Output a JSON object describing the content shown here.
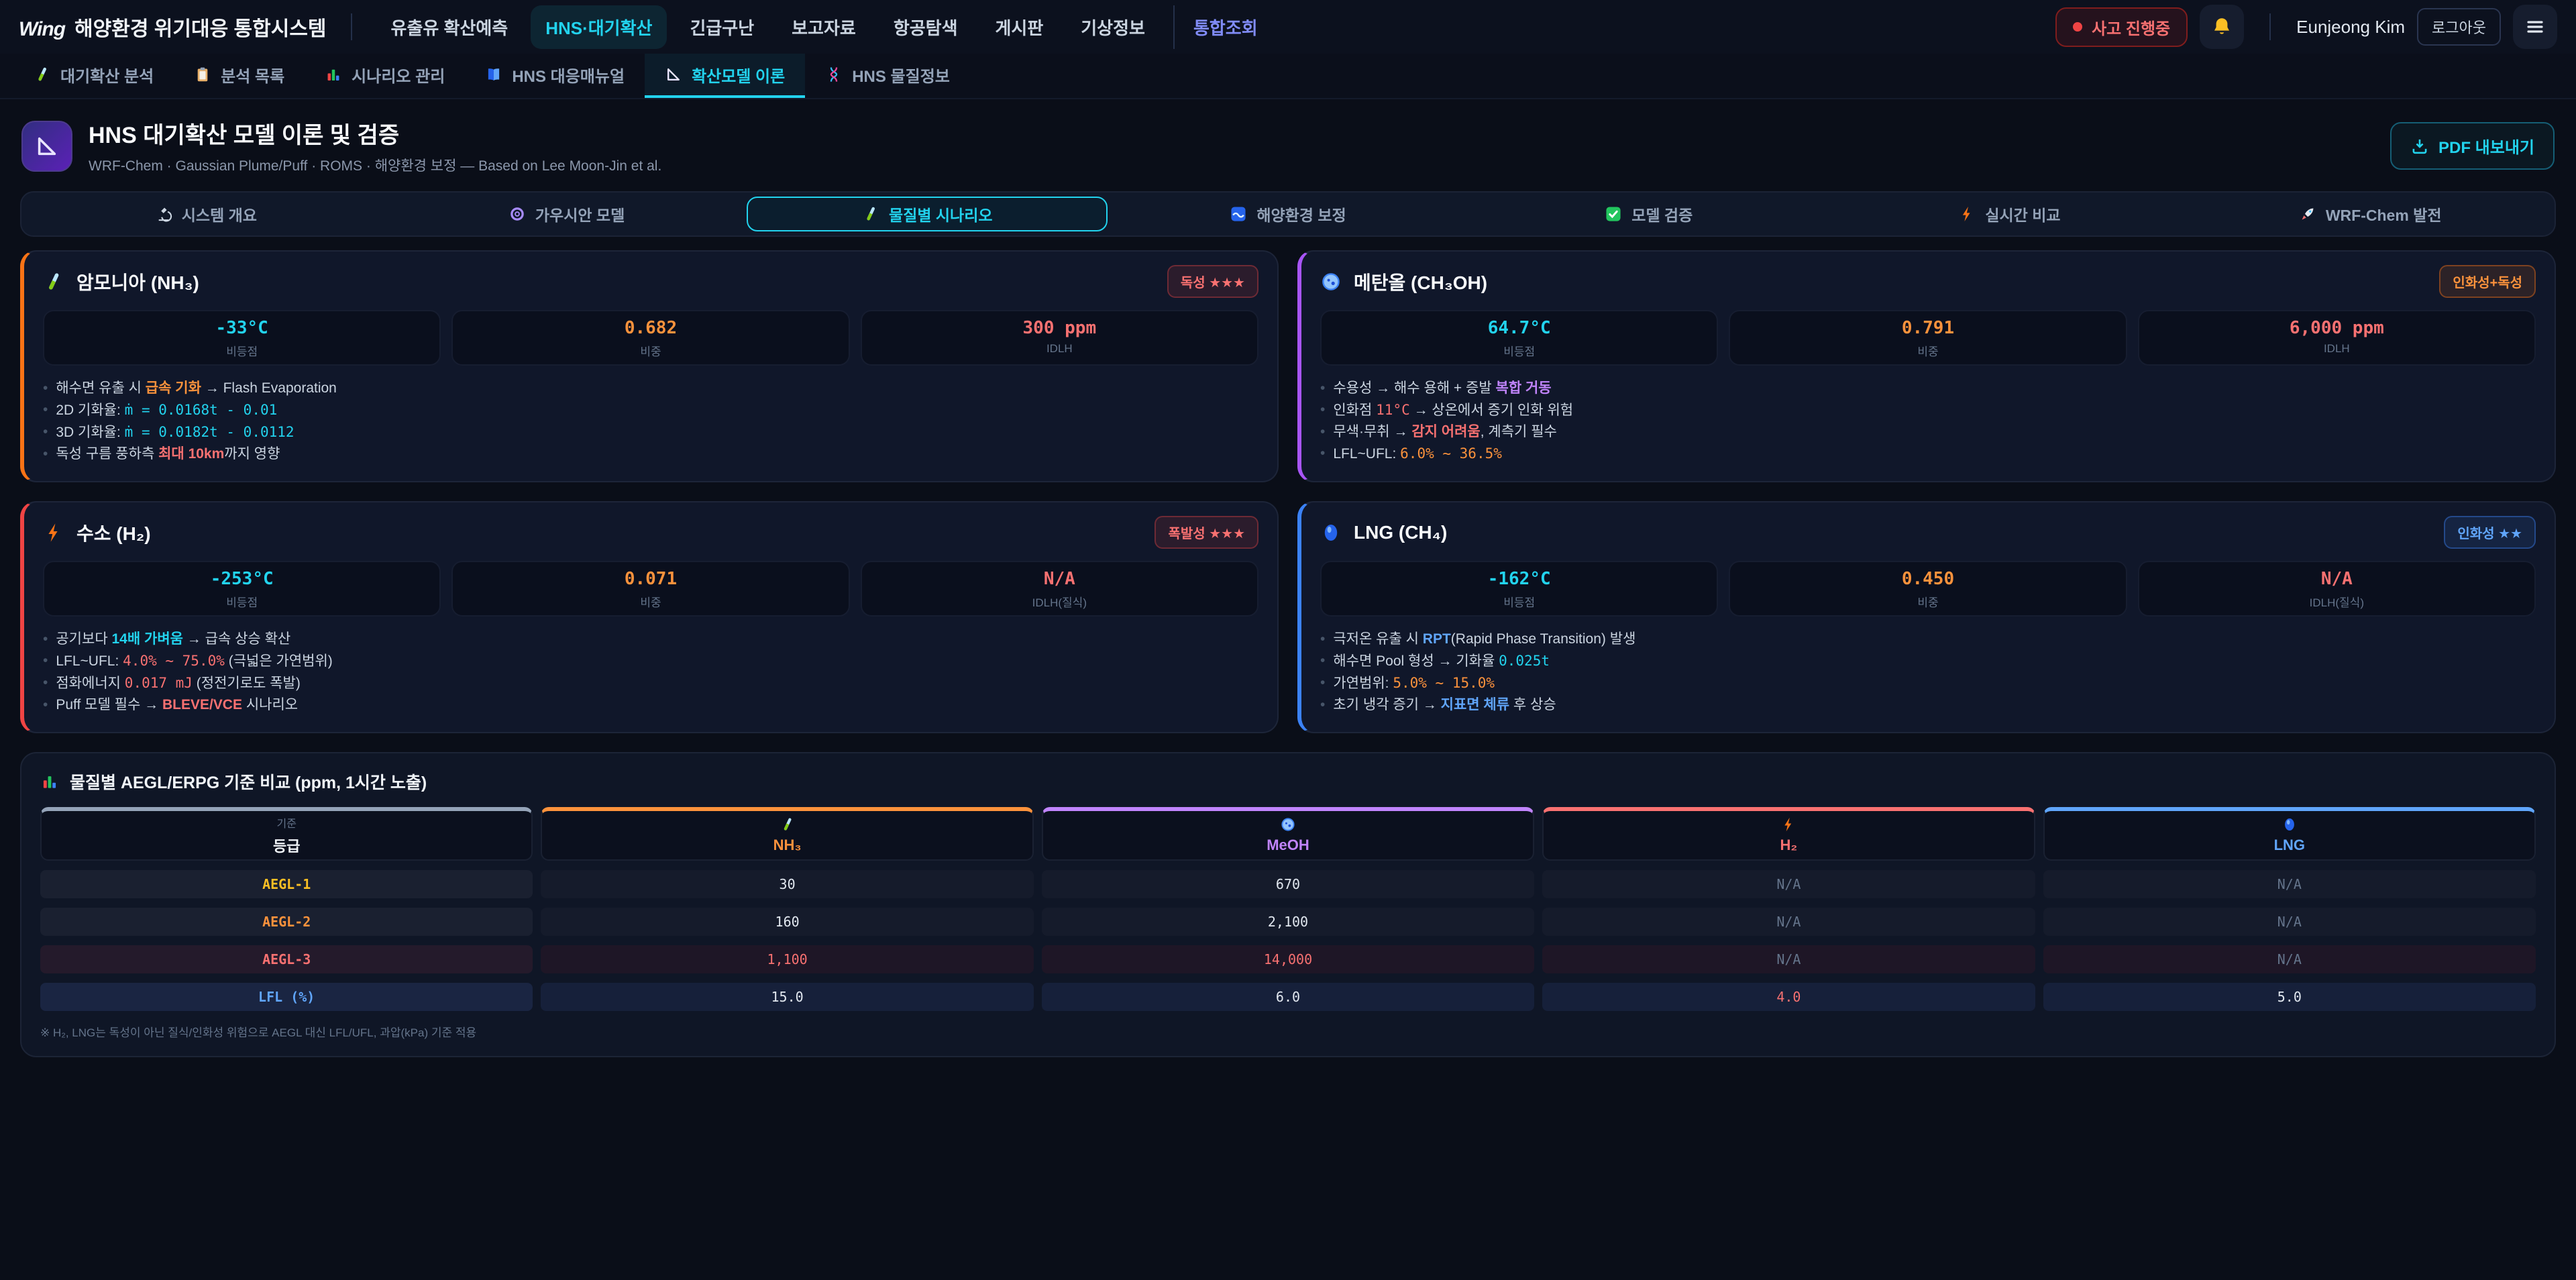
{
  "topbar": {
    "logo_mark": "Wing",
    "logo_text": "해양환경 위기대응 통합시스템",
    "nav": [
      {
        "label": "유출유 확산예측",
        "style": "normal"
      },
      {
        "label": "HNS·대기확산",
        "style": "active"
      },
      {
        "label": "긴급구난",
        "style": "normal"
      },
      {
        "label": "보고자료",
        "style": "normal"
      },
      {
        "label": "항공탐색",
        "style": "normal"
      },
      {
        "label": "게시판",
        "style": "normal"
      },
      {
        "label": "기상정보",
        "style": "normal"
      },
      {
        "label": "통합조회",
        "style": "accent"
      }
    ],
    "incident_badge": "사고 진행중",
    "user_name": "Eunjeong Kim",
    "logout_label": "로그아웃"
  },
  "subtabs": [
    {
      "icon": "test-tube-icon",
      "label": "대기확산 분석",
      "active": false
    },
    {
      "icon": "clipboard-icon",
      "label": "분석 목록",
      "active": false
    },
    {
      "icon": "bar-chart-icon",
      "label": "시나리오 관리",
      "active": false
    },
    {
      "icon": "book-icon",
      "label": "HNS 대응매뉴얼",
      "active": false
    },
    {
      "icon": "ruler-icon",
      "label": "확산모델 이론",
      "active": true
    },
    {
      "icon": "dna-icon",
      "label": "HNS 물질정보",
      "active": false
    }
  ],
  "header": {
    "title": "HNS 대기확산 모델 이론 및 검증",
    "subtitle": "WRF-Chem · Gaussian Plume/Puff · ROMS · 해양환경 보정 — Based on Lee Moon-Jin et al.",
    "pdf_button": "PDF 내보내기"
  },
  "pill_tabs": [
    {
      "icon": "microscope-icon",
      "label": "시스템 개요",
      "active": false
    },
    {
      "icon": "spiral-icon",
      "label": "가우시안 모델",
      "active": false
    },
    {
      "icon": "test-tube-icon",
      "label": "물질별 시나리오",
      "active": true
    },
    {
      "icon": "wave-icon",
      "label": "해양환경 보정",
      "active": false
    },
    {
      "icon": "check-icon",
      "label": "모델 검증",
      "active": false
    },
    {
      "icon": "bolt-icon",
      "label": "실시간 비교",
      "active": false
    },
    {
      "icon": "rocket-icon",
      "label": "WRF-Chem 발전",
      "active": false
    }
  ],
  "chemicals": [
    {
      "id": "nh3",
      "icon": "test-tube-icon",
      "name": "암모니아 (NH₃)",
      "accent": "#f97316",
      "badge": {
        "label": "독성 ★★★",
        "style": "red"
      },
      "stats": [
        {
          "value": "-33°C",
          "label": "비등점",
          "color": "cyan"
        },
        {
          "value": "0.682",
          "label": "비중",
          "color": "orange"
        },
        {
          "value": "300 ppm",
          "label": "IDLH",
          "color": "red"
        }
      ],
      "bullets": [
        [
          {
            "t": "해수면 유출 시 ",
            "s": "plain"
          },
          {
            "t": "급속 기화",
            "s": "orange-bold"
          },
          {
            "t": " → Flash Evaporation",
            "s": "plain"
          }
        ],
        [
          {
            "t": "2D 기화율: ",
            "s": "plain"
          },
          {
            "t": "ṁ = 0.0168t - 0.01",
            "s": "cyan-mono"
          }
        ],
        [
          {
            "t": "3D 기화율: ",
            "s": "plain"
          },
          {
            "t": "ṁ = 0.0182t - 0.0112",
            "s": "cyan-mono"
          }
        ],
        [
          {
            "t": "독성 구름 풍하측 ",
            "s": "plain"
          },
          {
            "t": "최대 10km",
            "s": "red-bold"
          },
          {
            "t": "까지 영향",
            "s": "plain"
          }
        ]
      ]
    },
    {
      "id": "meoh",
      "icon": "petri-icon",
      "name": "메탄올 (CH₃OH)",
      "accent": "#a855f7",
      "badge": {
        "label": "인화성+독성",
        "style": "orange"
      },
      "stats": [
        {
          "value": "64.7°C",
          "label": "비등점",
          "color": "cyan"
        },
        {
          "value": "0.791",
          "label": "비중",
          "color": "orange"
        },
        {
          "value": "6,000 ppm",
          "label": "IDLH",
          "color": "red"
        }
      ],
      "bullets": [
        [
          {
            "t": "수용성 → 해수 용해 + 증발 ",
            "s": "plain"
          },
          {
            "t": "복합 거동",
            "s": "purple-bold"
          }
        ],
        [
          {
            "t": "인화점 ",
            "s": "plain"
          },
          {
            "t": "11°C",
            "s": "red-mono"
          },
          {
            "t": " → 상온에서 증기 인화 위험",
            "s": "plain"
          }
        ],
        [
          {
            "t": "무색·무취 → ",
            "s": "plain"
          },
          {
            "t": "감지 어려움",
            "s": "red-bold"
          },
          {
            "t": ", 계측기 필수",
            "s": "plain"
          }
        ],
        [
          {
            "t": "LFL~UFL: ",
            "s": "plain"
          },
          {
            "t": "6.0% ~ 36.5%",
            "s": "orange-mono"
          }
        ]
      ]
    },
    {
      "id": "h2",
      "icon": "bolt-icon",
      "name": "수소 (H₂)",
      "accent": "#ef4444",
      "badge": {
        "label": "폭발성 ★★★",
        "style": "red"
      },
      "stats": [
        {
          "value": "-253°C",
          "label": "비등점",
          "color": "cyan"
        },
        {
          "value": "0.071",
          "label": "비중",
          "color": "orange"
        },
        {
          "value": "N/A",
          "label": "IDLH(질식)",
          "color": "red"
        }
      ],
      "bullets": [
        [
          {
            "t": "공기보다 ",
            "s": "plain"
          },
          {
            "t": "14배 가벼움",
            "s": "cyan-bold"
          },
          {
            "t": " → 급속 상승 확산",
            "s": "plain"
          }
        ],
        [
          {
            "t": "LFL~UFL: ",
            "s": "plain"
          },
          {
            "t": "4.0% ~ 75.0%",
            "s": "red-mono"
          },
          {
            "t": " (극넓은 가연범위)",
            "s": "plain"
          }
        ],
        [
          {
            "t": "점화에너지 ",
            "s": "plain"
          },
          {
            "t": "0.017 mJ",
            "s": "red-mono"
          },
          {
            "t": " (정전기로도 폭발)",
            "s": "plain"
          }
        ],
        [
          {
            "t": "Puff 모델 필수 → ",
            "s": "plain"
          },
          {
            "t": "BLEVE/VCE",
            "s": "red-bold"
          },
          {
            "t": " 시나리오",
            "s": "plain"
          }
        ]
      ]
    },
    {
      "id": "lng",
      "icon": "orb-icon",
      "name": "LNG (CH₄)",
      "accent": "#3b82f6",
      "badge": {
        "label": "인화성 ★★",
        "style": "blue"
      },
      "stats": [
        {
          "value": "-162°C",
          "label": "비등점",
          "color": "cyan"
        },
        {
          "value": "0.450",
          "label": "비중",
          "color": "orange"
        },
        {
          "value": "N/A",
          "label": "IDLH(질식)",
          "color": "red"
        }
      ],
      "bullets": [
        [
          {
            "t": "극저온 유출 시 ",
            "s": "plain"
          },
          {
            "t": "RPT",
            "s": "blue-bold"
          },
          {
            "t": "(Rapid Phase Transition) 발생",
            "s": "plain"
          }
        ],
        [
          {
            "t": "해수면 Pool 형성 → 기화율 ",
            "s": "plain"
          },
          {
            "t": "0.025t",
            "s": "cyan-mono"
          }
        ],
        [
          {
            "t": "가연범위: ",
            "s": "plain"
          },
          {
            "t": "5.0% ~ 15.0%",
            "s": "orange-mono"
          }
        ],
        [
          {
            "t": "초기 냉각 증기 → ",
            "s": "plain"
          },
          {
            "t": "지표면 체류",
            "s": "blue-bold"
          },
          {
            "t": " 후 상승",
            "s": "plain"
          }
        ]
      ]
    }
  ],
  "table": {
    "title": "물질별 AEGL/ERPG 기준 비교 (ppm, 1시간 노출)",
    "columns": [
      {
        "top": "기준",
        "label": "등급",
        "color": "#94a3b8"
      },
      {
        "icon": "test-tube-icon",
        "label": "NH₃",
        "color": "#fb923c"
      },
      {
        "icon": "petri-icon",
        "label": "MeOH",
        "color": "#c084fc"
      },
      {
        "icon": "bolt-icon",
        "label": "H₂",
        "color": "#f87171"
      },
      {
        "icon": "orb-icon",
        "label": "LNG",
        "color": "#60a5fa"
      }
    ],
    "rows": [
      {
        "label": "AEGL-1",
        "label_color": "#fbbf24",
        "tint": "",
        "cells": [
          {
            "v": "30"
          },
          {
            "v": "670"
          },
          {
            "v": "N/A",
            "m": true
          },
          {
            "v": "N/A",
            "m": true
          }
        ]
      },
      {
        "label": "AEGL-2",
        "label_color": "#fb923c",
        "tint": "",
        "cells": [
          {
            "v": "160"
          },
          {
            "v": "2,100"
          },
          {
            "v": "N/A",
            "m": true
          },
          {
            "v": "N/A",
            "m": true
          }
        ]
      },
      {
        "label": "AEGL-3",
        "label_color": "#f87171",
        "tint": "red",
        "cells": [
          {
            "v": "1,100",
            "r": true
          },
          {
            "v": "14,000",
            "r": true
          },
          {
            "v": "N/A",
            "m": true
          },
          {
            "v": "N/A",
            "m": true
          }
        ]
      },
      {
        "label": "LFL (%)",
        "label_color": "#60a5fa",
        "tint": "blue",
        "cells": [
          {
            "v": "15.0"
          },
          {
            "v": "6.0"
          },
          {
            "v": "4.0",
            "r": true
          },
          {
            "v": "5.0"
          }
        ]
      }
    ],
    "footnote": "※ H₂, LNG는 독성이 아닌 질식/인화성 위험으로 AEGL 대신 LFL/UFL, 과압(kPa) 기준 적용"
  }
}
